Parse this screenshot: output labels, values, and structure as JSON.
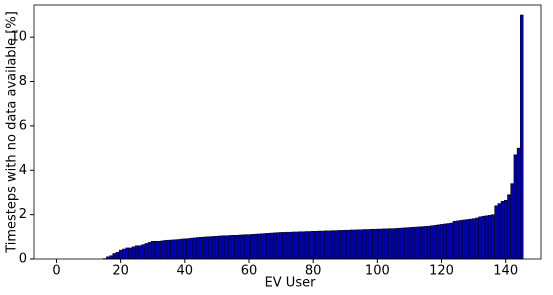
{
  "chart_data": {
    "type": "bar",
    "xlabel": "EV User",
    "ylabel": "Timesteps with no data available [%]",
    "x": [
      0,
      1,
      2,
      3,
      4,
      5,
      6,
      7,
      8,
      9,
      10,
      11,
      12,
      13,
      14,
      15,
      16,
      17,
      18,
      19,
      20,
      21,
      22,
      23,
      24,
      25,
      26,
      27,
      28,
      29,
      30,
      31,
      32,
      33,
      34,
      35,
      36,
      37,
      38,
      39,
      40,
      41,
      42,
      43,
      44,
      45,
      46,
      47,
      48,
      49,
      50,
      51,
      52,
      53,
      54,
      55,
      56,
      57,
      58,
      59,
      60,
      61,
      62,
      63,
      64,
      65,
      66,
      67,
      68,
      69,
      70,
      71,
      72,
      73,
      74,
      75,
      76,
      77,
      78,
      79,
      80,
      81,
      82,
      83,
      84,
      85,
      86,
      87,
      88,
      89,
      90,
      91,
      92,
      93,
      94,
      95,
      96,
      97,
      98,
      99,
      100,
      101,
      102,
      103,
      104,
      105,
      106,
      107,
      108,
      109,
      110,
      111,
      112,
      113,
      114,
      115,
      116,
      117,
      118,
      119,
      120,
      121,
      122,
      123,
      124,
      125,
      126,
      127,
      128,
      129,
      130,
      131,
      132,
      133,
      134,
      135,
      136,
      137,
      138,
      139,
      140,
      141,
      142,
      143,
      144,
      145
    ],
    "values": [
      0,
      0,
      0,
      0,
      0,
      0,
      0,
      0,
      0,
      0,
      0,
      0,
      0,
      0,
      0,
      0.02,
      0.1,
      0.15,
      0.25,
      0.3,
      0.4,
      0.45,
      0.5,
      0.5,
      0.55,
      0.6,
      0.6,
      0.65,
      0.7,
      0.75,
      0.8,
      0.8,
      0.8,
      0.82,
      0.84,
      0.85,
      0.86,
      0.87,
      0.88,
      0.9,
      0.91,
      0.92,
      0.94,
      0.95,
      0.97,
      0.98,
      0.99,
      1.0,
      1.01,
      1.02,
      1.03,
      1.04,
      1.05,
      1.05,
      1.06,
      1.07,
      1.07,
      1.08,
      1.09,
      1.1,
      1.1,
      1.11,
      1.12,
      1.13,
      1.14,
      1.15,
      1.16,
      1.17,
      1.18,
      1.19,
      1.2,
      1.2,
      1.21,
      1.21,
      1.22,
      1.22,
      1.23,
      1.23,
      1.24,
      1.24,
      1.25,
      1.25,
      1.26,
      1.26,
      1.27,
      1.27,
      1.28,
      1.28,
      1.29,
      1.29,
      1.3,
      1.3,
      1.31,
      1.31,
      1.32,
      1.32,
      1.33,
      1.33,
      1.34,
      1.34,
      1.35,
      1.35,
      1.36,
      1.36,
      1.37,
      1.37,
      1.38,
      1.39,
      1.4,
      1.41,
      1.42,
      1.43,
      1.44,
      1.45,
      1.46,
      1.47,
      1.48,
      1.5,
      1.52,
      1.54,
      1.56,
      1.58,
      1.6,
      1.62,
      1.7,
      1.72,
      1.74,
      1.76,
      1.78,
      1.8,
      1.82,
      1.85,
      1.9,
      1.93,
      1.95,
      1.97,
      2.0,
      2.4,
      2.5,
      2.6,
      2.65,
      2.9,
      3.4,
      4.7,
      5.0,
      11.0
    ],
    "color": "#0000bb",
    "edgecolor": "#000000",
    "xlim": [
      -7,
      151
    ],
    "xticks": [
      0,
      20,
      40,
      60,
      80,
      100,
      120,
      140
    ],
    "ylim": [
      0,
      11.45
    ],
    "yticks": [
      0,
      2,
      4,
      6,
      8,
      10
    ]
  }
}
